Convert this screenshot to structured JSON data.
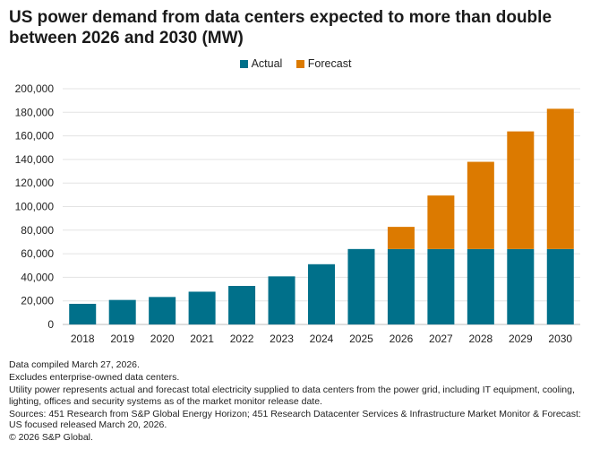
{
  "chart_data": {
    "type": "bar",
    "stacked": true,
    "title": "US power demand from data centers expected to more than double between 2026 and 2030 (MW)",
    "xlabel": "",
    "ylabel": "",
    "ylim": [
      0,
      200000
    ],
    "yticks": [
      0,
      20000,
      40000,
      60000,
      80000,
      100000,
      120000,
      140000,
      160000,
      180000,
      200000
    ],
    "ytick_labels": [
      "0",
      "20,000",
      "40,000",
      "60,000",
      "80,000",
      "100,000",
      "120,000",
      "140,000",
      "160,000",
      "180,000",
      "200,000"
    ],
    "grid": true,
    "legend_position": "top-center",
    "categories": [
      "2018",
      "2019",
      "2020",
      "2021",
      "2022",
      "2023",
      "2024",
      "2025",
      "2026",
      "2027",
      "2028",
      "2029",
      "2030"
    ],
    "series": [
      {
        "name": "Actual",
        "color": "#00708a",
        "values": [
          17500,
          20800,
          23300,
          27800,
          32700,
          40800,
          51100,
          64000,
          64000,
          64000,
          64000,
          64000,
          64000
        ]
      },
      {
        "name": "Forecast",
        "color": "#dc7a00",
        "values": [
          0,
          0,
          0,
          0,
          0,
          0,
          0,
          0,
          18800,
          45400,
          74000,
          99800,
          119000
        ]
      }
    ]
  },
  "notes": [
    "Data compiled March 27, 2026.",
    "Excludes enterprise-owned data centers.",
    "Utility power represents actual and forecast total electricity supplied to data centers from the power grid, including IT equipment, cooling, lighting, offices and security systems as of the market monitor release date.",
    "Sources: 451 Research from S&P Global Energy Horizon; 451 Research Datacenter Services & Infrastructure Market Monitor & Forecast: US focused released March 20, 2026.",
    "© 2026 S&P Global."
  ]
}
